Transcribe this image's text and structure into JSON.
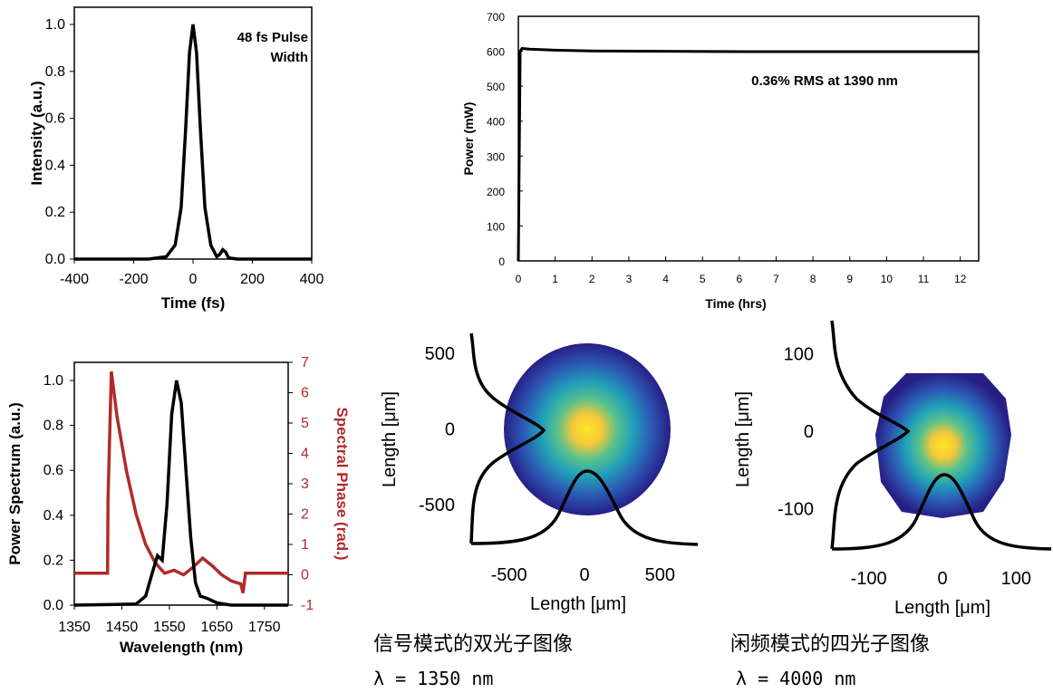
{
  "chart_data": [
    {
      "id": "pulse",
      "type": "line",
      "title": "",
      "xlabel": "Time (fs)",
      "ylabel": "Intensity (a.u.)",
      "xlim": [
        -400,
        400
      ],
      "ylim": [
        0,
        1.0
      ],
      "xticks": [
        "-400",
        "-200",
        "0",
        "200",
        "400"
      ],
      "yticks": [
        "0.0",
        "0.2",
        "0.4",
        "0.6",
        "0.8",
        "1.0"
      ],
      "annotation": "48 fs Pulse Width",
      "series": [
        {
          "x": [
            -400,
            -150,
            -90,
            -60,
            -40,
            -25,
            -12,
            0,
            12,
            25,
            40,
            60,
            80,
            90,
            100,
            110,
            120,
            150,
            400
          ],
          "y": [
            0,
            0,
            0.01,
            0.06,
            0.22,
            0.55,
            0.88,
            1.0,
            0.88,
            0.55,
            0.22,
            0.06,
            0.01,
            0.02,
            0.04,
            0.03,
            0.005,
            0,
            0
          ]
        }
      ]
    },
    {
      "id": "power",
      "type": "line",
      "title": "",
      "xlabel": "Time (hrs)",
      "ylabel": "Power (mW)",
      "xlim": [
        0,
        12.5
      ],
      "ylim": [
        0,
        700
      ],
      "xticks": [
        "0",
        "1",
        "2",
        "3",
        "4",
        "5",
        "6",
        "7",
        "8",
        "9",
        "10",
        "11",
        "12"
      ],
      "yticks": [
        "0",
        "100",
        "200",
        "300",
        "400",
        "500",
        "600",
        "700"
      ],
      "annotation": "0.36% RMS at 1390 nm",
      "series": [
        {
          "x": [
            0,
            0.05,
            0.1,
            0.3,
            1,
            2,
            4,
            6,
            8,
            10,
            12,
            12.5
          ],
          "y": [
            0,
            600,
            608,
            606,
            603,
            601,
            600,
            599,
            599,
            599,
            599,
            599
          ]
        }
      ]
    },
    {
      "id": "spectrum",
      "type": "line",
      "title": "",
      "xlabel": "Wavelength (nm)",
      "ylabel": "Power Spectrum (a.u.)",
      "ylabel_right": "Spectral Phase (rad.)",
      "xlim": [
        1350,
        1800
      ],
      "ylim": [
        0,
        1.0
      ],
      "ylim_right": [
        -1,
        7
      ],
      "xticks": [
        "1350",
        "1450",
        "1550",
        "1650",
        "1750"
      ],
      "yticks": [
        "0.0",
        "0.2",
        "0.4",
        "0.6",
        "0.8",
        "1.0"
      ],
      "yticks_right": [
        "-1",
        "0",
        "1",
        "2",
        "3",
        "4",
        "5",
        "6",
        "7"
      ],
      "series": [
        {
          "axis": "left",
          "color": "#000000",
          "x": [
            1350,
            1480,
            1500,
            1515,
            1525,
            1535,
            1545,
            1555,
            1565,
            1575,
            1585,
            1595,
            1605,
            1615,
            1630,
            1650,
            1680,
            1800
          ],
          "y": [
            0,
            0.005,
            0.04,
            0.15,
            0.22,
            0.2,
            0.45,
            0.85,
            1.0,
            0.9,
            0.6,
            0.3,
            0.1,
            0.04,
            0.03,
            0.01,
            0,
            0
          ]
        },
        {
          "axis": "right",
          "color": "#b22a2a",
          "x": [
            1350,
            1420,
            1421,
            1428,
            1440,
            1460,
            1480,
            1500,
            1520,
            1540,
            1560,
            1580,
            1600,
            1620,
            1640,
            1660,
            1680,
            1690,
            1700,
            1705,
            1710,
            1800
          ],
          "y": [
            0.05,
            0.05,
            2.5,
            6.7,
            5.2,
            3.4,
            2.0,
            1.0,
            0.4,
            0.05,
            0.15,
            0.0,
            0.25,
            0.55,
            0.3,
            0.0,
            -0.2,
            -0.25,
            -0.3,
            -0.6,
            0.05,
            0.05
          ]
        }
      ]
    },
    {
      "id": "beam-signal",
      "type": "heatmap",
      "xlabel": "Length [μm]",
      "ylabel": "Length [μm]",
      "xlim": [
        -750,
        750
      ],
      "ylim": [
        -750,
        750
      ],
      "xticks": [
        "-500",
        "0",
        "500"
      ],
      "yticks": [
        "500",
        "0",
        "-500"
      ]
    },
    {
      "id": "beam-idler",
      "type": "heatmap",
      "xlabel": "Length [μm]",
      "ylabel": "Length [μm]",
      "xlim": [
        -150,
        150
      ],
      "ylim": [
        -150,
        150
      ],
      "xticks": [
        "-100",
        "0",
        "100"
      ],
      "yticks": [
        "100",
        "0",
        "-100"
      ]
    }
  ],
  "captions": {
    "signal_title": "信号模式的双光子图像",
    "signal_wavelength": "λ = 1350 nm",
    "idler_title": "闲频模式的四光子图像",
    "idler_wavelength": "λ = 4000 nm"
  },
  "colors": {
    "phase": "#b22a2a",
    "line": "#000000"
  }
}
